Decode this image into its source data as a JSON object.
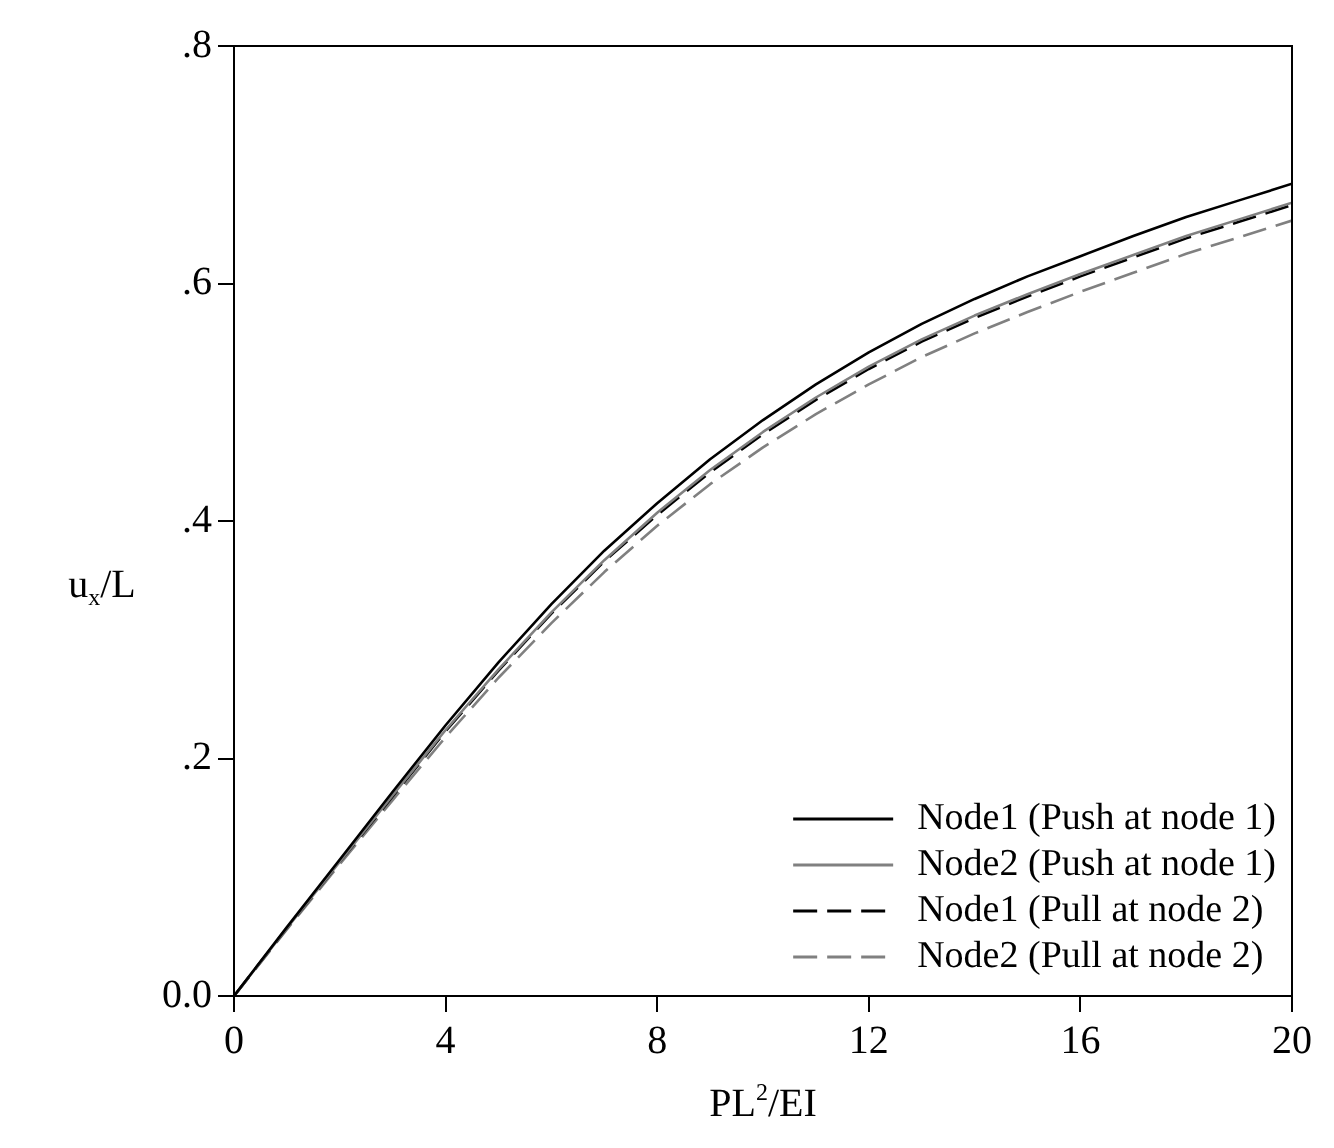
{
  "chart_data": {
    "type": "line",
    "xlabel": "PL$^{2}$/EI",
    "ylabel": "u$_{x}$/L",
    "x": [
      0,
      1,
      2,
      3,
      4,
      5,
      6,
      7,
      8,
      9,
      10,
      11,
      12,
      13,
      14,
      15,
      16,
      17,
      18,
      19,
      20
    ],
    "series": [
      {
        "name": "Node1 (Push at node 1)",
        "color": "#000000",
        "line_style": "solid",
        "values": [
          0,
          0.058,
          0.115,
          0.172,
          0.228,
          0.281,
          0.33,
          0.375,
          0.415,
          0.452,
          0.485,
          0.515,
          0.542,
          0.566,
          0.587,
          0.606,
          0.623,
          0.64,
          0.656,
          0.67,
          0.684
        ]
      },
      {
        "name": "Node2 (Push at node 1)",
        "color": "#808080",
        "line_style": "solid",
        "values": [
          0,
          0.057,
          0.113,
          0.169,
          0.224,
          0.275,
          0.323,
          0.367,
          0.407,
          0.443,
          0.475,
          0.504,
          0.53,
          0.553,
          0.573,
          0.591,
          0.608,
          0.624,
          0.64,
          0.654,
          0.668
        ]
      },
      {
        "name": "Node1 (Pull at node 2)",
        "color": "#000000",
        "line_style": "dashed",
        "values": [
          0,
          0.057,
          0.113,
          0.168,
          0.223,
          0.274,
          0.322,
          0.366,
          0.405,
          0.441,
          0.473,
          0.502,
          0.528,
          0.551,
          0.571,
          0.589,
          0.606,
          0.622,
          0.638,
          0.652,
          0.666
        ]
      },
      {
        "name": "Node2 (Pull at node 2)",
        "color": "#808080",
        "line_style": "dashed",
        "values": [
          0,
          0.056,
          0.111,
          0.165,
          0.218,
          0.268,
          0.314,
          0.357,
          0.396,
          0.431,
          0.462,
          0.49,
          0.515,
          0.538,
          0.558,
          0.576,
          0.593,
          0.609,
          0.625,
          0.639,
          0.653
        ]
      }
    ],
    "xlim": [
      0,
      20
    ],
    "ylim": [
      0,
      0.8
    ],
    "xticks": [
      0,
      4,
      8,
      12,
      16,
      20
    ],
    "yticks": [
      {
        "value": 0,
        "label": "0.0"
      },
      {
        "value": 0.2,
        "label": ".2"
      },
      {
        "value": 0.4,
        "label": ".4"
      },
      {
        "value": 0.6,
        "label": ".6"
      },
      {
        "value": 0.8,
        "label": ".8"
      }
    ],
    "grid": false,
    "legend": "bottom right",
    "marker": "none"
  }
}
